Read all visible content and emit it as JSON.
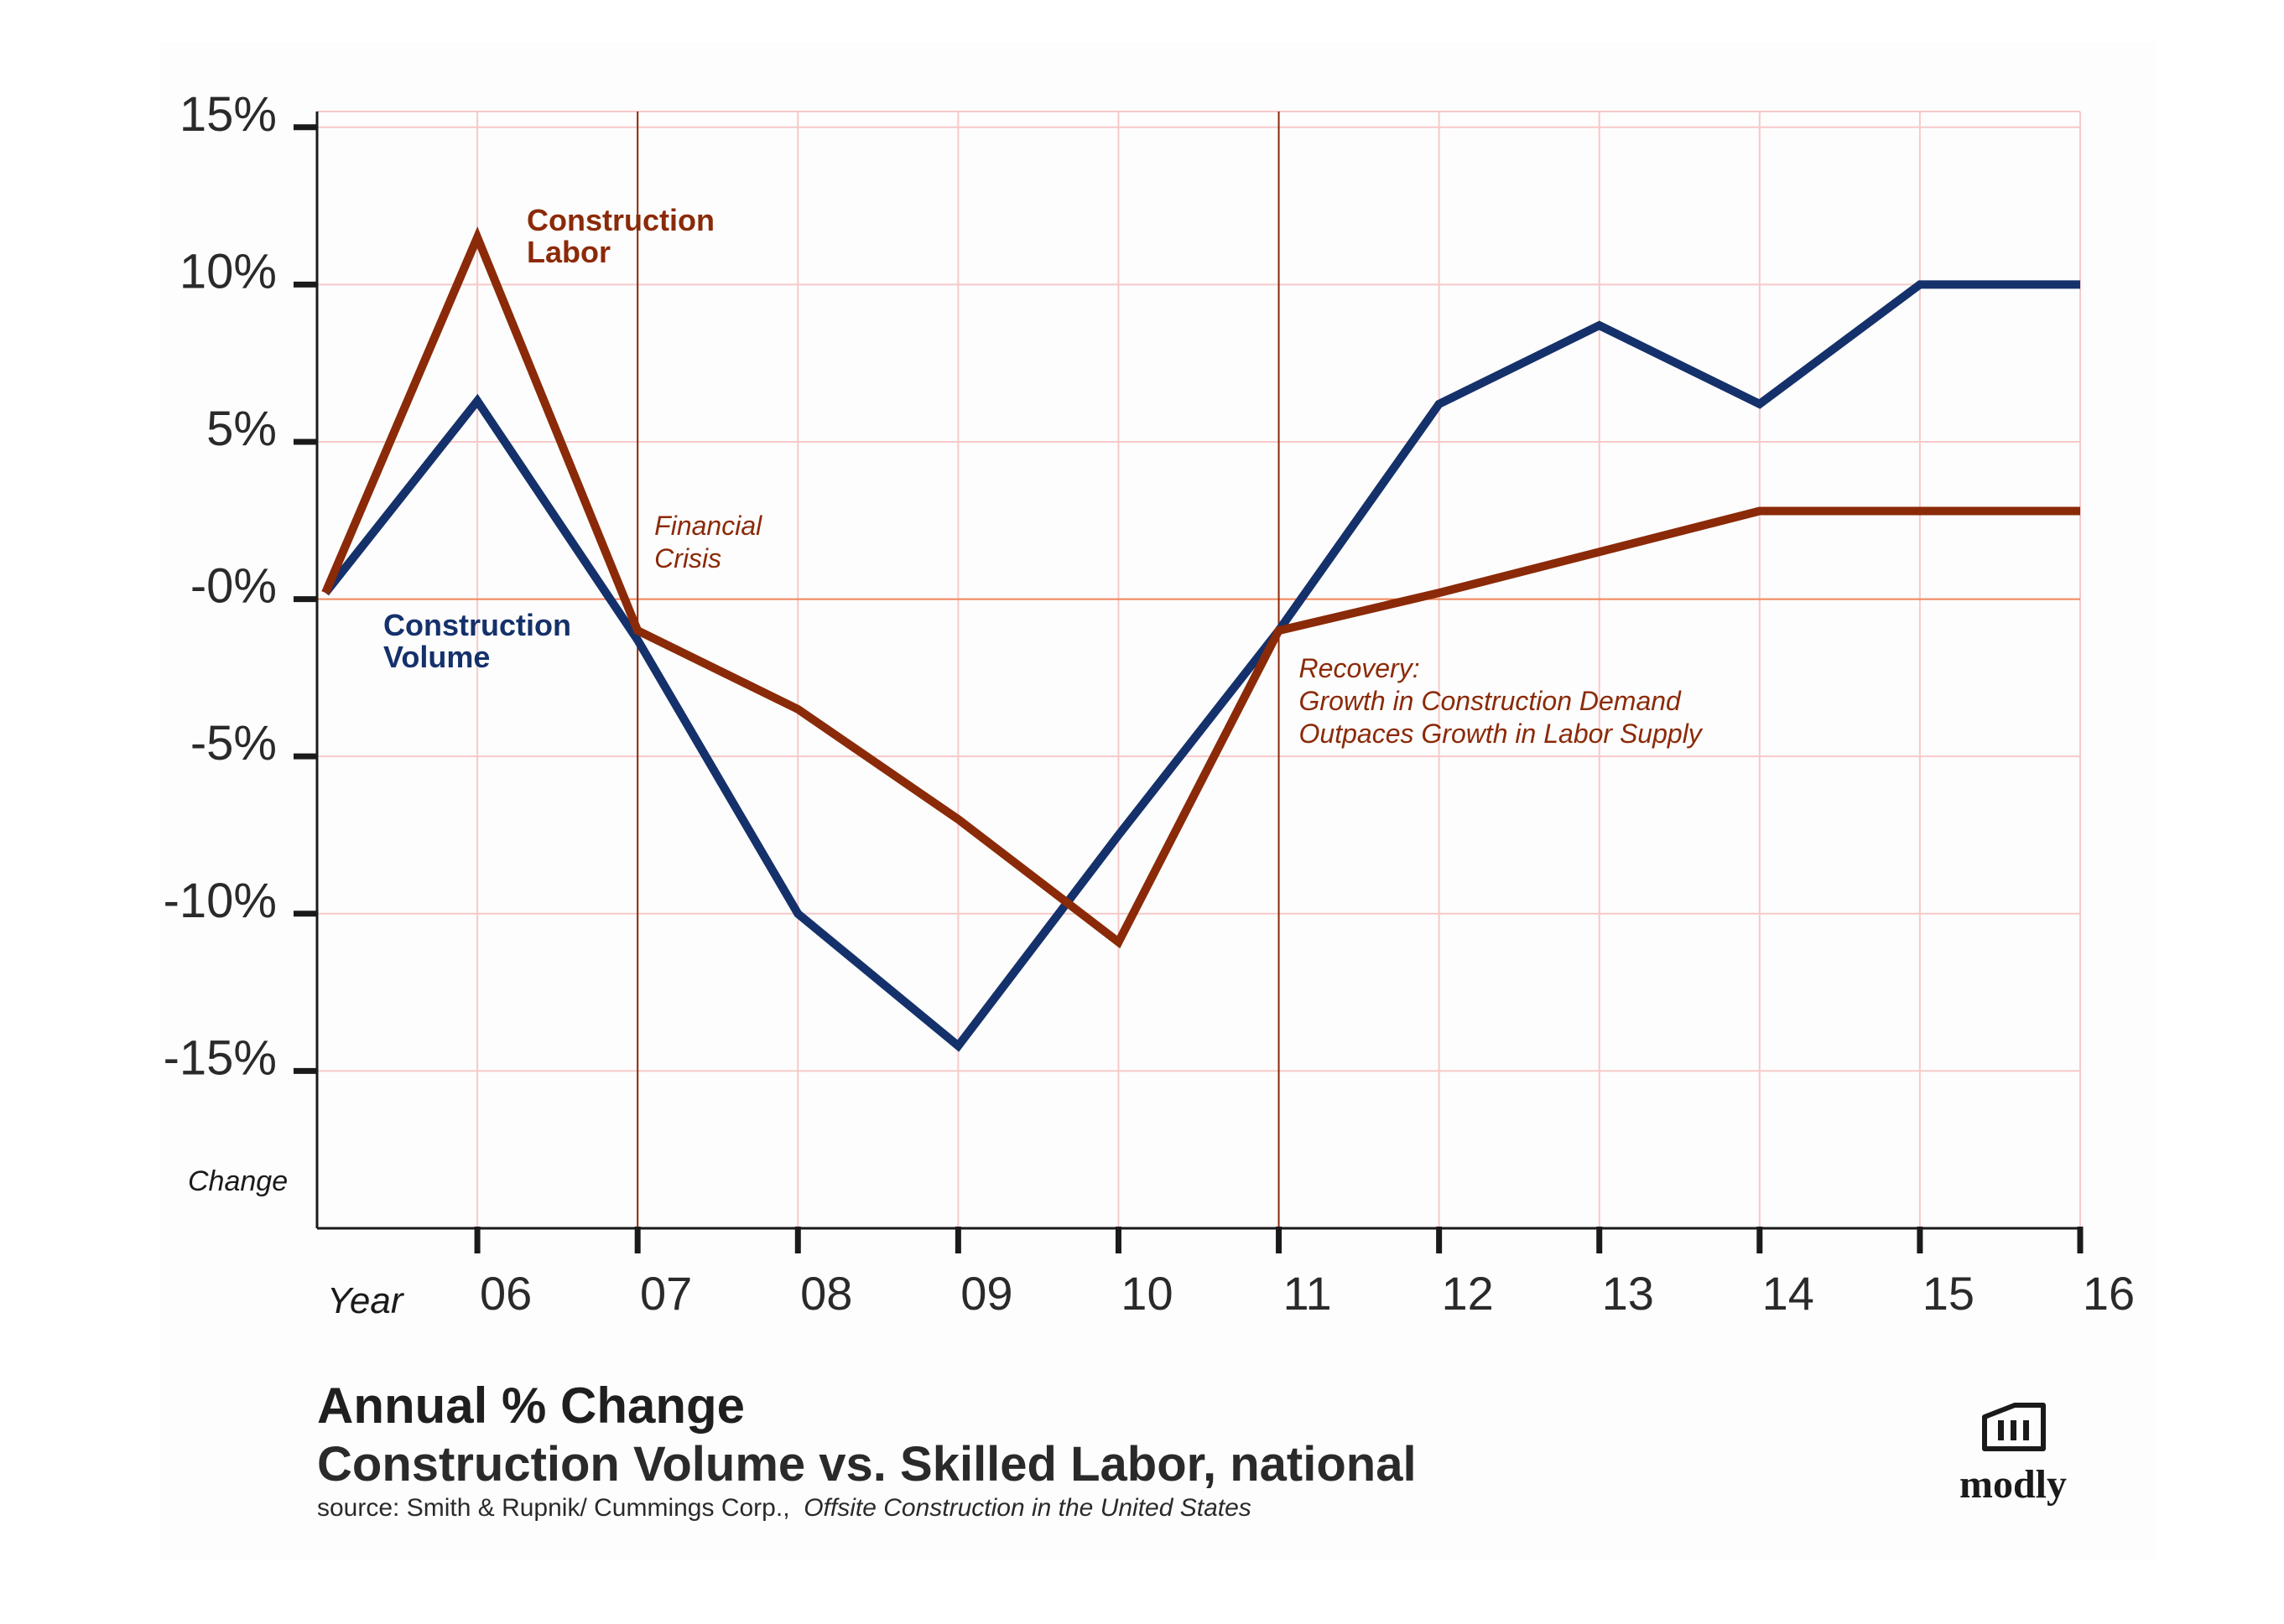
{
  "chart_data": {
    "type": "line",
    "title": "Annual % Change",
    "subtitle": "Construction Volume vs. Skilled Labor, national",
    "source_prefix": "source: Smith & Rupnik/ Cummings Corp.,",
    "source_title": "Offsite Construction in the United States",
    "xlabel": "Year",
    "ylabel": "Change",
    "x_ticks": [
      "06",
      "07",
      "08",
      "09",
      "10",
      "11",
      "12",
      "13",
      "14",
      "15",
      "16"
    ],
    "y_ticks": [
      {
        "value": 15,
        "label": "15%"
      },
      {
        "value": 10,
        "label": "10%"
      },
      {
        "value": 5,
        "label": "5%"
      },
      {
        "value": 0,
        "label": "-0%"
      },
      {
        "value": -5,
        "label": "-5%"
      },
      {
        "value": -10,
        "label": "-10%"
      },
      {
        "value": -15,
        "label": "-15%"
      }
    ],
    "ylim": [
      -20,
      15.5
    ],
    "xlim": [
      2005,
      2016
    ],
    "series": [
      {
        "name": "Construction Labor",
        "label_lines": [
          "Construction",
          "Labor"
        ],
        "color": "#8b2a08",
        "x": [
          2005,
          2006,
          2007,
          2008,
          2009,
          2010,
          2011,
          2012,
          2013,
          2014,
          2015,
          2016
        ],
        "values": [
          0.2,
          11.5,
          -1.0,
          -3.5,
          -7.0,
          -10.9,
          -1.0,
          0.2,
          1.5,
          2.8,
          2.8,
          2.8
        ]
      },
      {
        "name": "Construction Volume",
        "label_lines": [
          "Construction",
          "Volume"
        ],
        "color": "#15316b",
        "x": [
          2005,
          2006,
          2007,
          2008,
          2009,
          2010,
          2011,
          2012,
          2013,
          2014,
          2015,
          2016
        ],
        "values": [
          0.2,
          6.3,
          -1.3,
          -10.0,
          -14.2,
          -7.5,
          -1.0,
          6.2,
          8.7,
          6.2,
          10.0,
          10.0
        ]
      }
    ],
    "annotations": [
      {
        "x": 2007,
        "lines": [
          "Financial",
          "Crisis"
        ]
      },
      {
        "x": 2011,
        "lines": [
          "Recovery:",
          "Growth in Construction Demand",
          "Outpaces Growth in Labor Supply"
        ]
      }
    ],
    "colors": {
      "grid": "#f7c9c9",
      "zero_line": "#f0845a",
      "event_line": "#8b2a08",
      "axis": "#1a1a1a",
      "annotation": "#8b2a08"
    }
  },
  "logo": {
    "text": "modly"
  }
}
